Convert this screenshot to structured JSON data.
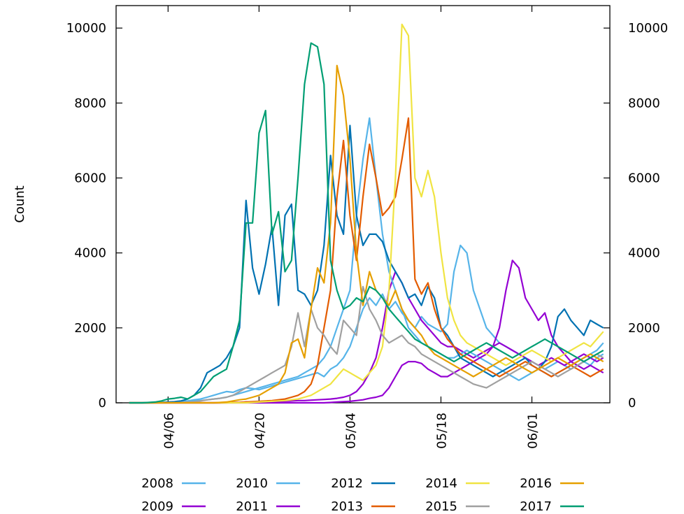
{
  "chart_data": {
    "type": "line",
    "title": "",
    "xlabel": "",
    "ylabel": "Count",
    "ylim": [
      0,
      10600
    ],
    "xlim": [
      "03-29",
      "06-13"
    ],
    "x_ticks": [
      "04/06",
      "04/20",
      "05/04",
      "05/18",
      "06/01"
    ],
    "y_ticks": [
      0,
      2000,
      4000,
      6000,
      8000,
      10000
    ],
    "right_y_ticks": [
      0,
      2000,
      4000,
      6000,
      8000,
      10000
    ],
    "grid": false,
    "legend": "bottom",
    "x": [
      "03-31",
      "04-01",
      "04-02",
      "04-03",
      "04-04",
      "04-05",
      "04-06",
      "04-07",
      "04-08",
      "04-09",
      "04-10",
      "04-11",
      "04-12",
      "04-13",
      "04-14",
      "04-15",
      "04-16",
      "04-17",
      "04-18",
      "04-19",
      "04-20",
      "04-21",
      "04-22",
      "04-23",
      "04-24",
      "04-25",
      "04-26",
      "04-27",
      "04-28",
      "04-29",
      "04-30",
      "05-01",
      "05-02",
      "05-03",
      "05-04",
      "05-05",
      "05-06",
      "05-07",
      "05-08",
      "05-09",
      "05-10",
      "05-11",
      "05-12",
      "05-13",
      "05-14",
      "05-15",
      "05-16",
      "05-17",
      "05-18",
      "05-19",
      "05-20",
      "05-21",
      "05-22",
      "05-23",
      "05-24",
      "05-25",
      "05-26",
      "05-27",
      "05-28",
      "05-29",
      "05-30",
      "05-31",
      "06-01",
      "06-02",
      "06-03",
      "06-04",
      "06-05",
      "06-06",
      "06-07",
      "06-08",
      "06-09",
      "06-10",
      "06-11",
      "06-12"
    ],
    "series": [
      {
        "name": "2008",
        "color": "#56b4e9",
        "values": [
          0,
          0,
          0,
          5,
          10,
          10,
          15,
          20,
          30,
          50,
          80,
          100,
          150,
          200,
          250,
          300,
          280,
          350,
          400,
          380,
          350,
          400,
          450,
          500,
          550,
          600,
          650,
          700,
          750,
          800,
          700,
          900,
          1000,
          1200,
          1500,
          2000,
          2500,
          2800,
          2600,
          2900,
          2500,
          2700,
          2400,
          2200,
          2000,
          2300,
          2100,
          2000,
          1900,
          2100,
          3500,
          4200,
          4000,
          3000,
          2500,
          2000,
          1800,
          1600,
          1500,
          1400,
          1300,
          1200,
          1100,
          1000,
          900,
          1000,
          1100,
          1000,
          900,
          1000,
          1100,
          1000,
          1200,
          1300
        ]
      },
      {
        "name": "2009",
        "color": "#9400d3",
        "values": [
          0,
          0,
          0,
          0,
          0,
          0,
          0,
          0,
          0,
          0,
          0,
          0,
          0,
          0,
          0,
          10,
          10,
          10,
          20,
          20,
          20,
          30,
          30,
          40,
          40,
          50,
          60,
          60,
          70,
          80,
          90,
          100,
          120,
          150,
          200,
          300,
          500,
          800,
          1200,
          2000,
          3000,
          3500,
          3200,
          2800,
          2500,
          2200,
          2000,
          1800,
          1600,
          1500,
          1500,
          1400,
          1300,
          1200,
          1300,
          1400,
          1500,
          1600,
          1500,
          1400,
          1300,
          1200,
          1100,
          1000,
          1100,
          1200,
          1100,
          1000,
          1100,
          1200,
          1300,
          1200,
          1100,
          1200
        ]
      },
      {
        "name": "2010",
        "color": "#56b4e9",
        "values": [
          0,
          0,
          0,
          0,
          10,
          10,
          20,
          20,
          30,
          40,
          50,
          60,
          80,
          100,
          120,
          150,
          200,
          250,
          300,
          350,
          400,
          450,
          500,
          550,
          600,
          650,
          700,
          800,
          900,
          1000,
          1200,
          1500,
          2000,
          2500,
          3000,
          5000,
          6500,
          7600,
          6000,
          4500,
          3500,
          3000,
          2500,
          2000,
          1800,
          1600,
          1500,
          1400,
          1300,
          1200,
          1200,
          1300,
          1400,
          1300,
          1200,
          1100,
          1000,
          900,
          800,
          700,
          600,
          700,
          800,
          900,
          800,
          700,
          800,
          900,
          1000,
          1100,
          1200,
          1300,
          1400,
          1600
        ]
      },
      {
        "name": "2011",
        "color": "#9400d3",
        "values": [
          0,
          0,
          0,
          0,
          0,
          0,
          0,
          0,
          0,
          0,
          0,
          0,
          0,
          0,
          0,
          0,
          0,
          0,
          0,
          0,
          0,
          0,
          0,
          0,
          0,
          0,
          0,
          0,
          0,
          0,
          0,
          10,
          20,
          30,
          40,
          60,
          80,
          120,
          150,
          200,
          400,
          700,
          1000,
          1100,
          1100,
          1050,
          900,
          800,
          700,
          700,
          800,
          900,
          1000,
          1100,
          1200,
          1300,
          1500,
          2000,
          3000,
          3800,
          3600,
          2800,
          2500,
          2200,
          2400,
          1800,
          1500,
          1300,
          1100,
          1000,
          900,
          1000,
          900,
          800
        ]
      },
      {
        "name": "2012",
        "color": "#0072b2",
        "values": [
          0,
          0,
          0,
          0,
          10,
          10,
          20,
          30,
          50,
          100,
          200,
          400,
          800,
          900,
          1000,
          1200,
          1500,
          2000,
          5400,
          3600,
          2900,
          3700,
          4700,
          2600,
          5000,
          5300,
          3000,
          2900,
          2600,
          3000,
          4200,
          6600,
          5000,
          4500,
          7400,
          5000,
          4200,
          4500,
          4500,
          4300,
          3800,
          3500,
          3200,
          2800,
          2900,
          2600,
          3100,
          2800,
          2000,
          1800,
          1500,
          1200,
          1100,
          1000,
          900,
          800,
          700,
          800,
          900,
          1000,
          1100,
          1200,
          1000,
          900,
          1100,
          1500,
          2300,
          2500,
          2200,
          2000,
          1800,
          2200,
          2100,
          2000
        ]
      },
      {
        "name": "2013",
        "color": "#e35c00",
        "values": [
          0,
          0,
          0,
          0,
          0,
          0,
          0,
          0,
          0,
          0,
          0,
          0,
          0,
          0,
          0,
          0,
          10,
          10,
          20,
          30,
          40,
          50,
          60,
          80,
          100,
          150,
          200,
          300,
          500,
          1000,
          2000,
          3000,
          5500,
          7000,
          5000,
          3800,
          5500,
          6900,
          6000,
          5000,
          5200,
          5500,
          6500,
          7600,
          3300,
          2900,
          3200,
          2500,
          2000,
          1700,
          1500,
          1300,
          1200,
          1100,
          1000,
          900,
          800,
          700,
          800,
          900,
          1000,
          1100,
          1000,
          900,
          800,
          700,
          800,
          900,
          1000,
          900,
          800,
          700,
          800,
          900
        ]
      },
      {
        "name": "2014",
        "color": "#f0e442",
        "values": [
          0,
          0,
          0,
          0,
          0,
          0,
          0,
          0,
          0,
          0,
          0,
          0,
          0,
          0,
          0,
          0,
          0,
          0,
          0,
          10,
          20,
          30,
          40,
          50,
          60,
          80,
          100,
          150,
          200,
          300,
          400,
          500,
          700,
          900,
          800,
          700,
          600,
          800,
          1000,
          1500,
          3000,
          6000,
          10100,
          9800,
          6000,
          5500,
          6200,
          5500,
          4000,
          2800,
          2200,
          1800,
          1600,
          1500,
          1400,
          1300,
          1200,
          1100,
          1000,
          1100,
          1200,
          1300,
          1400,
          1300,
          1200,
          1100,
          1200,
          1300,
          1400,
          1500,
          1600,
          1500,
          1700,
          1900
        ]
      },
      {
        "name": "2015",
        "color": "#a0a0a0",
        "values": [
          0,
          0,
          0,
          0,
          0,
          0,
          0,
          0,
          10,
          20,
          30,
          50,
          80,
          100,
          120,
          150,
          200,
          300,
          400,
          500,
          600,
          700,
          800,
          900,
          1000,
          1500,
          2400,
          1500,
          2500,
          2000,
          1800,
          1500,
          1300,
          2200,
          2000,
          1800,
          3100,
          2500,
          2200,
          1800,
          1600,
          1700,
          1800,
          1600,
          1500,
          1300,
          1200,
          1100,
          1000,
          900,
          800,
          700,
          600,
          500,
          450,
          400,
          500,
          600,
          700,
          800,
          900,
          1000,
          1100,
          1000,
          900,
          800,
          700,
          800,
          900,
          1000,
          1100,
          1200,
          1300,
          1200
        ]
      },
      {
        "name": "2016",
        "color": "#e69f00",
        "values": [
          0,
          0,
          0,
          0,
          0,
          0,
          0,
          0,
          0,
          0,
          0,
          0,
          0,
          0,
          10,
          20,
          50,
          80,
          100,
          150,
          200,
          300,
          400,
          500,
          800,
          1600,
          1700,
          1200,
          2500,
          3600,
          3200,
          4800,
          9000,
          8200,
          6500,
          4000,
          2600,
          3500,
          3000,
          2800,
          2600,
          3000,
          2500,
          2200,
          2000,
          1800,
          1500,
          1300,
          1200,
          1100,
          1000,
          900,
          800,
          700,
          800,
          900,
          1000,
          1100,
          1200,
          1100,
          1000,
          900,
          800,
          900,
          1000,
          1100,
          1200,
          1100,
          1000,
          1100,
          1200,
          1300,
          1200,
          1100
        ]
      },
      {
        "name": "2017",
        "color": "#009e73",
        "values": [
          0,
          0,
          0,
          10,
          20,
          50,
          100,
          120,
          150,
          100,
          200,
          300,
          500,
          700,
          800,
          900,
          1500,
          2200,
          4800,
          4800,
          7200,
          7800,
          4500,
          5100,
          3500,
          3800,
          6000,
          8500,
          9600,
          9500,
          8500,
          3800,
          3000,
          2500,
          2600,
          2800,
          2700,
          3100,
          3000,
          2800,
          2500,
          2300,
          2100,
          1900,
          1700,
          1600,
          1500,
          1400,
          1300,
          1200,
          1100,
          1200,
          1300,
          1400,
          1500,
          1600,
          1500,
          1400,
          1300,
          1200,
          1300,
          1400,
          1500,
          1600,
          1700,
          1600,
          1500,
          1400,
          1300,
          1200,
          1100,
          1200,
          1300,
          1400
        ]
      }
    ]
  }
}
